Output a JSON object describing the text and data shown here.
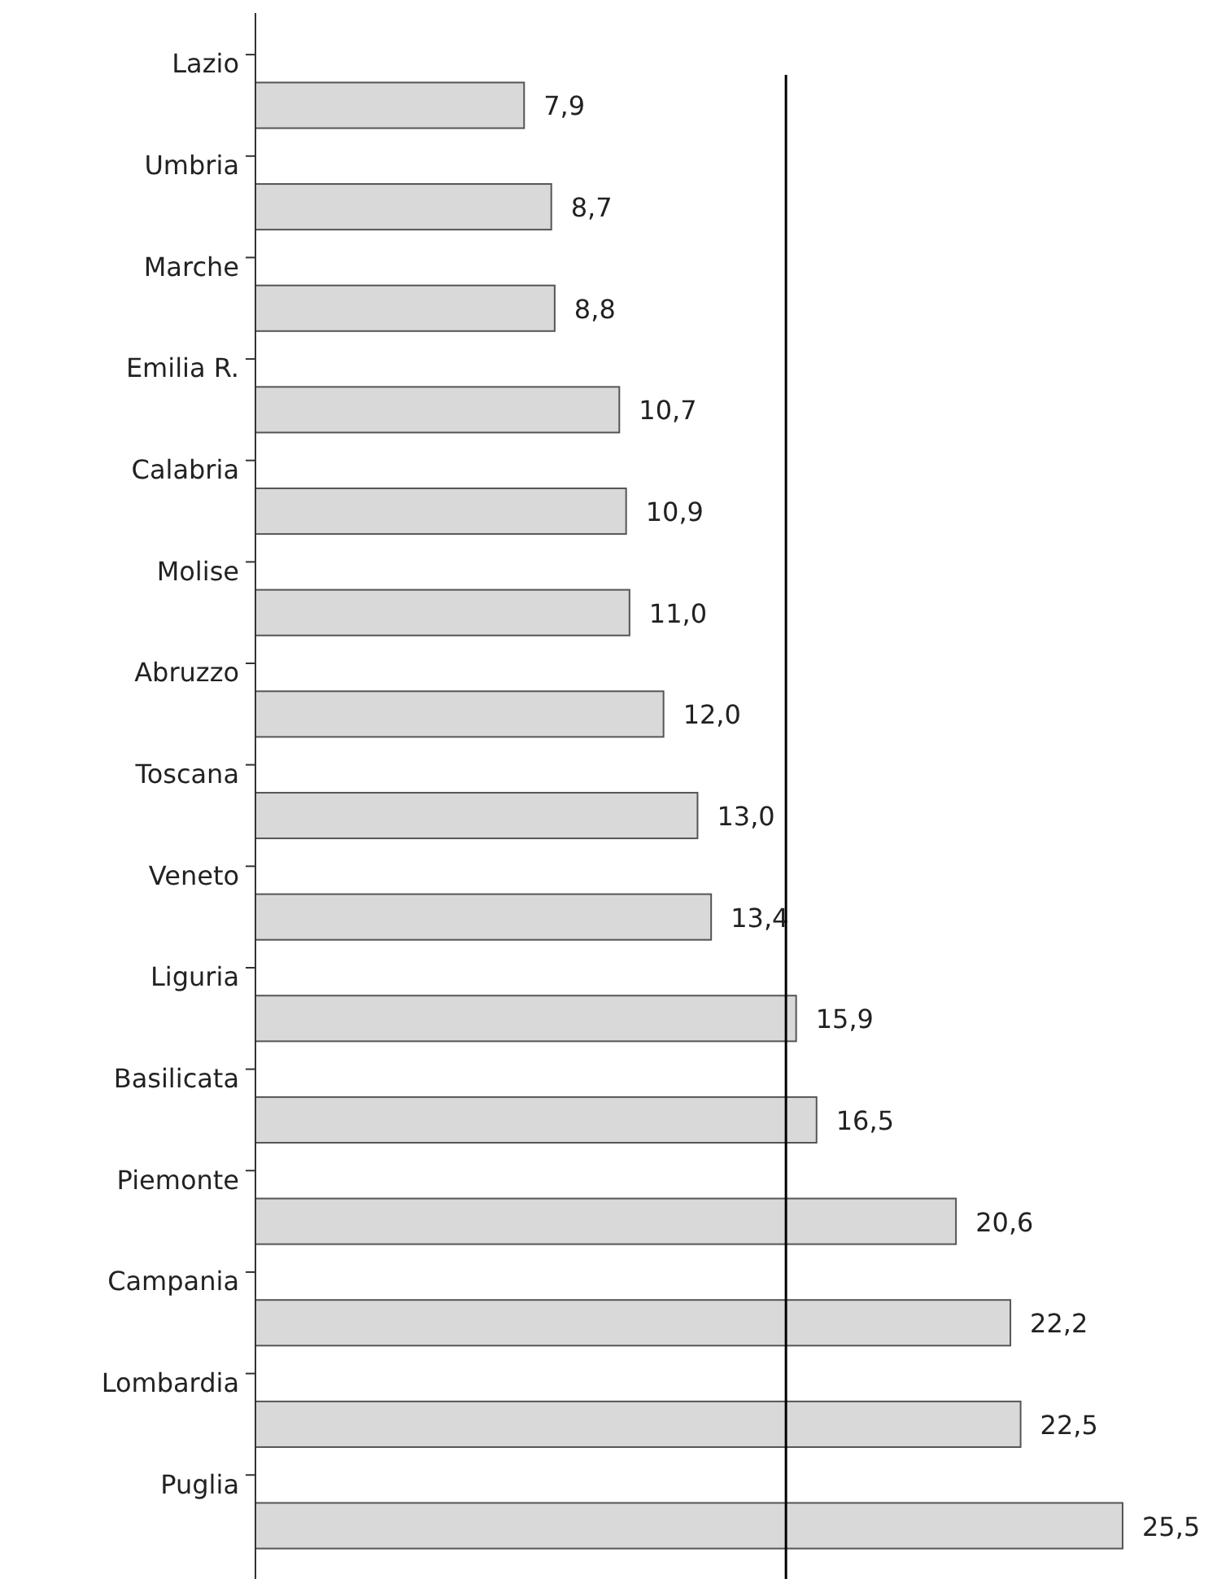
{
  "chart_data": {
    "type": "bar",
    "orientation": "horizontal",
    "categories": [
      "Lazio",
      "Umbria",
      "Marche",
      "Emilia R.",
      "Calabria",
      "Molise",
      "Abruzzo",
      "Toscana",
      "Veneto",
      "Liguria",
      "Basilicata",
      "Piemonte",
      "Campania",
      "Lombardia",
      "Puglia"
    ],
    "values": [
      7.9,
      8.7,
      8.8,
      10.7,
      10.9,
      11.0,
      12.0,
      13.0,
      13.4,
      15.9,
      16.5,
      20.6,
      22.2,
      22.5,
      25.5
    ],
    "value_labels": [
      "7,9",
      "8,7",
      "8,8",
      "10,7",
      "10,9",
      "11,0",
      "12,0",
      "13,0",
      "13,4",
      "15,9",
      "16,5",
      "20,6",
      "22,2",
      "22,5",
      "25,5"
    ],
    "color": "#d9d9d9",
    "ref_lines": [
      {
        "axis": "x",
        "value": 15.6,
        "color": "#000000"
      }
    ]
  }
}
